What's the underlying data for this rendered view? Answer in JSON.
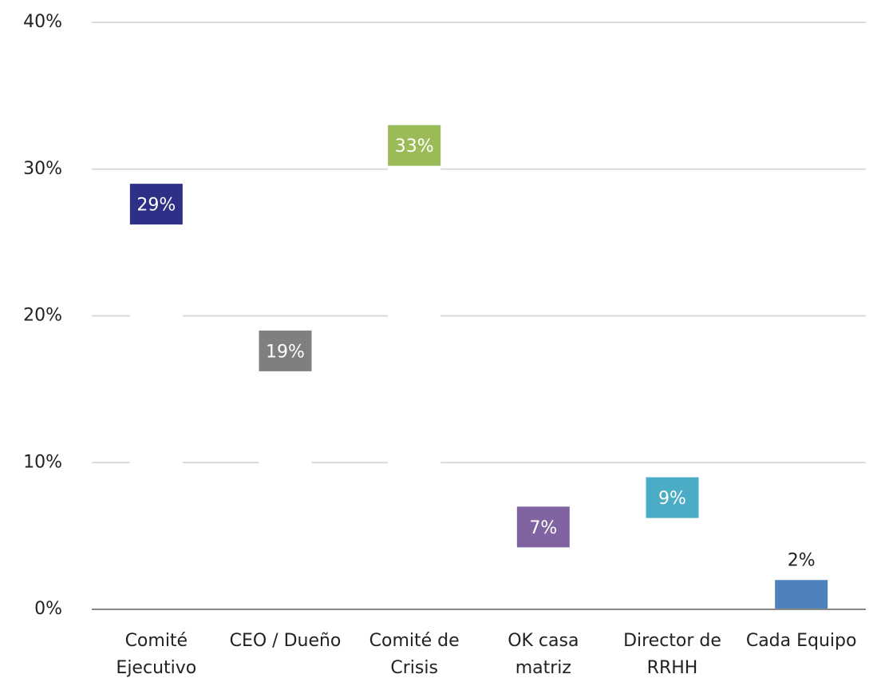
{
  "chart_data": {
    "type": "bar",
    "categories": [
      "Comité Ejecutivo",
      "CEO / Dueño",
      "Comité de Crisis",
      "OK casa matriz",
      "Director de RRHH",
      "Cada Equipo"
    ],
    "values": [
      29,
      19,
      33,
      7,
      9,
      2
    ],
    "value_labels": [
      "29%",
      "19%",
      "33%",
      "7%",
      "9%",
      "2%"
    ],
    "colors": [
      "#2e3087",
      "#7f7f7f",
      "#9bbb59",
      "#8064a2",
      "#4bacc6",
      "#4f81bd"
    ],
    "ylim": [
      0,
      40
    ],
    "yticks": [
      {
        "value": 0,
        "label": "0%"
      },
      {
        "value": 10,
        "label": "10%"
      },
      {
        "value": 20,
        "label": "20%"
      },
      {
        "value": 30,
        "label": "30%"
      },
      {
        "value": 40,
        "label": "40%"
      }
    ],
    "grid": true
  }
}
